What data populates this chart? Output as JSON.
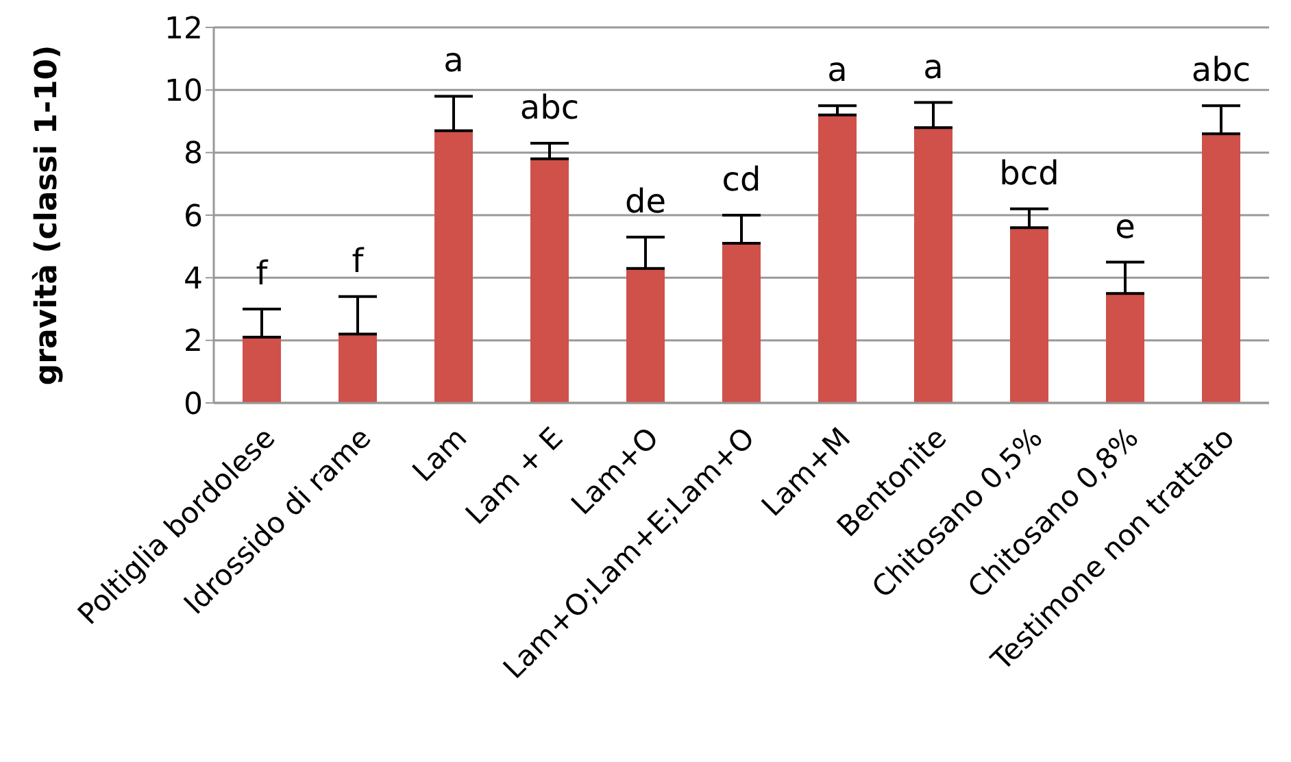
{
  "chart_data": {
    "type": "bar",
    "ylabel": "gravità  (classi 1-10)",
    "categories": [
      "Poltiglia bordolese",
      "Idrossido di rame",
      "Lam",
      "Lam + E",
      "Lam+O",
      "Lam+O;Lam+E;Lam+O",
      "Lam+M",
      "Bentonite",
      "Chitosano 0,5%",
      "Chitosano 0,8%",
      "Testimone non trattato"
    ],
    "values": [
      2.1,
      2.2,
      8.7,
      7.8,
      4.3,
      5.1,
      9.2,
      8.8,
      5.6,
      3.5,
      8.6
    ],
    "errors": [
      [
        2.1,
        3.0
      ],
      [
        2.2,
        3.4
      ],
      [
        8.7,
        9.8
      ],
      [
        7.8,
        8.3
      ],
      [
        4.3,
        5.3
      ],
      [
        5.1,
        6.0
      ],
      [
        9.2,
        9.5
      ],
      [
        8.8,
        9.6
      ],
      [
        5.6,
        6.2
      ],
      [
        3.5,
        4.5
      ],
      [
        8.6,
        9.5
      ]
    ],
    "color": "#d0504a",
    "ylim": [
      0,
      12
    ],
    "yticks": [
      0,
      2,
      4,
      6,
      8,
      10,
      12
    ],
    "grid": "y",
    "legend": false,
    "annotations": [
      {
        "text": "f",
        "x": "Poltiglia bordolese",
        "y": 3.0
      },
      {
        "text": "f",
        "x": "Idrossido di rame",
        "y": 3.4
      },
      {
        "text": "a",
        "x": "Lam",
        "y": 9.8
      },
      {
        "text": "abc",
        "x": "Lam + E",
        "y": 8.3
      },
      {
        "text": "de",
        "x": "Lam+O",
        "y": 5.3
      },
      {
        "text": "cd",
        "x": "Lam+O;Lam+E;Lam+O",
        "y": 6.0
      },
      {
        "text": "a",
        "x": "Lam+M",
        "y": 9.5
      },
      {
        "text": "a",
        "x": "Bentonite",
        "y": 9.6
      },
      {
        "text": "bcd",
        "x": "Chitosano 0,5%",
        "y": 6.2
      },
      {
        "text": "e",
        "x": "Chitosano 0,8%",
        "y": 4.5
      },
      {
        "text": "abc",
        "x": "Testimone non trattato",
        "y": 9.5
      }
    ]
  }
}
